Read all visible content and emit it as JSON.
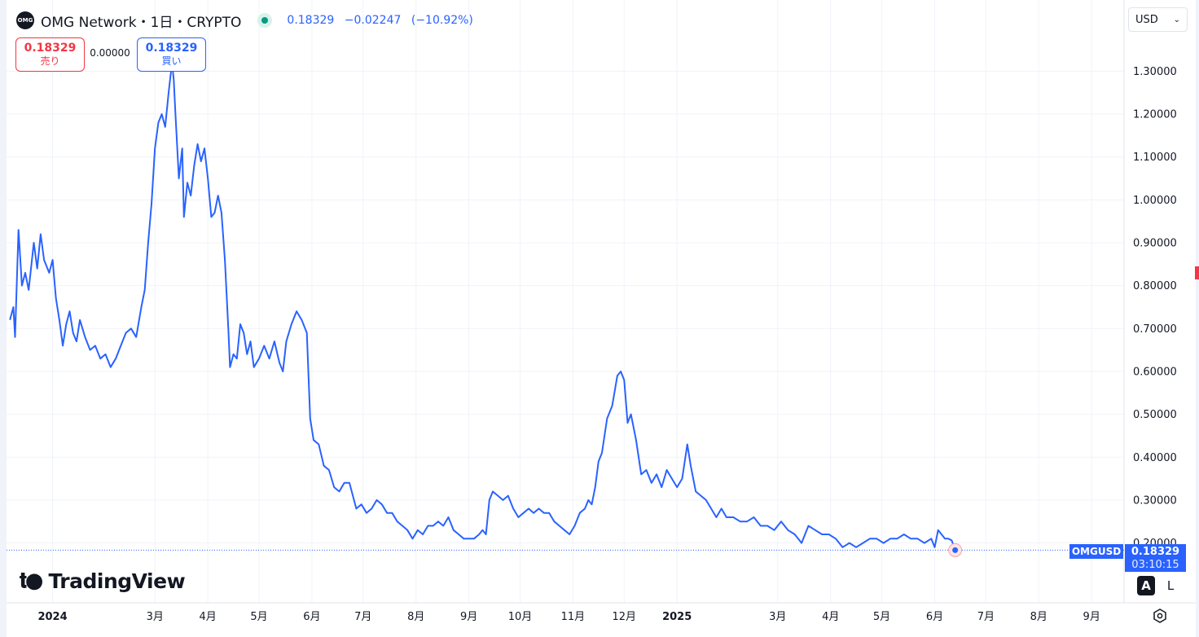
{
  "header": {
    "logo_text": "OMG",
    "title": "OMG Network・1日・CRYPTO",
    "last_price": "0.18329",
    "change": "−0.02247",
    "change_pct": "(−10.92%)"
  },
  "trade": {
    "sell_price": "0.18329",
    "sell_label": "売り",
    "spread": "0.00000",
    "buy_price": "0.18329",
    "buy_label": "買い"
  },
  "currency": {
    "selected": "USD"
  },
  "branding": {
    "name": "TradingView"
  },
  "price_tag": {
    "symbol": "OMGUSD",
    "price": "0.18329",
    "countdown": "03:10:15"
  },
  "scale_buttons": {
    "auto": "A",
    "log": "L"
  },
  "colors": {
    "line": "#2962ff",
    "grid": "#f0f3fa",
    "down": "#f23645",
    "live": "#089981"
  },
  "chart_data": {
    "type": "line",
    "series": [
      {
        "points": [
          [
            "2023-12-07",
            0.72
          ],
          [
            "2023-12-09",
            0.75
          ],
          [
            "2023-12-10",
            0.68
          ],
          [
            "2023-12-12",
            0.93
          ],
          [
            "2023-12-14",
            0.8
          ],
          [
            "2023-12-16",
            0.83
          ],
          [
            "2023-12-18",
            0.79
          ],
          [
            "2023-12-21",
            0.9
          ],
          [
            "2023-12-23",
            0.84
          ],
          [
            "2023-12-25",
            0.92
          ],
          [
            "2023-12-27",
            0.86
          ],
          [
            "2023-12-30",
            0.83
          ],
          [
            "2024-01-01",
            0.86
          ],
          [
            "2024-01-03",
            0.77
          ],
          [
            "2024-01-05",
            0.72
          ],
          [
            "2024-01-07",
            0.66
          ],
          [
            "2024-01-09",
            0.71
          ],
          [
            "2024-01-11",
            0.74
          ],
          [
            "2024-01-13",
            0.69
          ],
          [
            "2024-01-15",
            0.67
          ],
          [
            "2024-01-17",
            0.72
          ],
          [
            "2024-01-20",
            0.68
          ],
          [
            "2024-01-23",
            0.65
          ],
          [
            "2024-01-26",
            0.66
          ],
          [
            "2024-01-29",
            0.63
          ],
          [
            "2024-02-01",
            0.64
          ],
          [
            "2024-02-04",
            0.61
          ],
          [
            "2024-02-07",
            0.63
          ],
          [
            "2024-02-10",
            0.66
          ],
          [
            "2024-02-13",
            0.69
          ],
          [
            "2024-02-16",
            0.7
          ],
          [
            "2024-02-19",
            0.68
          ],
          [
            "2024-02-22",
            0.75
          ],
          [
            "2024-02-24",
            0.79
          ],
          [
            "2024-02-26",
            0.9
          ],
          [
            "2024-02-28",
            0.99
          ],
          [
            "2024-03-01",
            1.12
          ],
          [
            "2024-03-03",
            1.18
          ],
          [
            "2024-03-05",
            1.2
          ],
          [
            "2024-03-07",
            1.17
          ],
          [
            "2024-03-09",
            1.25
          ],
          [
            "2024-03-11",
            1.32
          ],
          [
            "2024-03-12",
            1.28
          ],
          [
            "2024-03-13",
            1.2
          ],
          [
            "2024-03-15",
            1.05
          ],
          [
            "2024-03-17",
            1.12
          ],
          [
            "2024-03-18",
            0.96
          ],
          [
            "2024-03-20",
            1.04
          ],
          [
            "2024-03-22",
            1.01
          ],
          [
            "2024-03-24",
            1.08
          ],
          [
            "2024-03-26",
            1.13
          ],
          [
            "2024-03-28",
            1.09
          ],
          [
            "2024-03-30",
            1.12
          ],
          [
            "2024-04-01",
            1.05
          ],
          [
            "2024-04-03",
            0.96
          ],
          [
            "2024-04-05",
            0.97
          ],
          [
            "2024-04-07",
            1.01
          ],
          [
            "2024-04-09",
            0.97
          ],
          [
            "2024-04-11",
            0.86
          ],
          [
            "2024-04-13",
            0.7
          ],
          [
            "2024-04-14",
            0.61
          ],
          [
            "2024-04-16",
            0.64
          ],
          [
            "2024-04-18",
            0.63
          ],
          [
            "2024-04-20",
            0.71
          ],
          [
            "2024-04-22",
            0.69
          ],
          [
            "2024-04-24",
            0.64
          ],
          [
            "2024-04-26",
            0.67
          ],
          [
            "2024-04-28",
            0.61
          ],
          [
            "2024-05-01",
            0.63
          ],
          [
            "2024-05-04",
            0.66
          ],
          [
            "2024-05-07",
            0.63
          ],
          [
            "2024-05-10",
            0.67
          ],
          [
            "2024-05-13",
            0.62
          ],
          [
            "2024-05-15",
            0.6
          ],
          [
            "2024-05-17",
            0.67
          ],
          [
            "2024-05-20",
            0.71
          ],
          [
            "2024-05-23",
            0.74
          ],
          [
            "2024-05-26",
            0.72
          ],
          [
            "2024-05-29",
            0.69
          ],
          [
            "2024-05-31",
            0.49
          ],
          [
            "2024-06-02",
            0.44
          ],
          [
            "2024-06-05",
            0.43
          ],
          [
            "2024-06-08",
            0.38
          ],
          [
            "2024-06-11",
            0.37
          ],
          [
            "2024-06-14",
            0.33
          ],
          [
            "2024-06-17",
            0.32
          ],
          [
            "2024-06-20",
            0.34
          ],
          [
            "2024-06-23",
            0.34
          ],
          [
            "2024-06-25",
            0.31
          ],
          [
            "2024-06-27",
            0.28
          ],
          [
            "2024-06-30",
            0.29
          ],
          [
            "2024-07-03",
            0.27
          ],
          [
            "2024-07-06",
            0.28
          ],
          [
            "2024-07-09",
            0.3
          ],
          [
            "2024-07-12",
            0.29
          ],
          [
            "2024-07-15",
            0.27
          ],
          [
            "2024-07-18",
            0.27
          ],
          [
            "2024-07-21",
            0.25
          ],
          [
            "2024-07-24",
            0.24
          ],
          [
            "2024-07-27",
            0.23
          ],
          [
            "2024-07-30",
            0.21
          ],
          [
            "2024-08-02",
            0.23
          ],
          [
            "2024-08-05",
            0.22
          ],
          [
            "2024-08-08",
            0.24
          ],
          [
            "2024-08-11",
            0.24
          ],
          [
            "2024-08-14",
            0.25
          ],
          [
            "2024-08-17",
            0.24
          ],
          [
            "2024-08-20",
            0.26
          ],
          [
            "2024-08-23",
            0.23
          ],
          [
            "2024-08-26",
            0.22
          ],
          [
            "2024-08-29",
            0.21
          ],
          [
            "2024-09-01",
            0.21
          ],
          [
            "2024-09-04",
            0.21
          ],
          [
            "2024-09-07",
            0.22
          ],
          [
            "2024-09-09",
            0.23
          ],
          [
            "2024-09-11",
            0.22
          ],
          [
            "2024-09-13",
            0.3
          ],
          [
            "2024-09-15",
            0.32
          ],
          [
            "2024-09-18",
            0.31
          ],
          [
            "2024-09-21",
            0.3
          ],
          [
            "2024-09-24",
            0.31
          ],
          [
            "2024-09-27",
            0.28
          ],
          [
            "2024-09-30",
            0.26
          ],
          [
            "2024-10-03",
            0.27
          ],
          [
            "2024-10-06",
            0.28
          ],
          [
            "2024-10-09",
            0.27
          ],
          [
            "2024-10-12",
            0.28
          ],
          [
            "2024-10-15",
            0.27
          ],
          [
            "2024-10-18",
            0.27
          ],
          [
            "2024-10-21",
            0.25
          ],
          [
            "2024-10-24",
            0.24
          ],
          [
            "2024-10-27",
            0.23
          ],
          [
            "2024-10-30",
            0.22
          ],
          [
            "2024-11-02",
            0.24
          ],
          [
            "2024-11-05",
            0.27
          ],
          [
            "2024-11-08",
            0.28
          ],
          [
            "2024-11-10",
            0.3
          ],
          [
            "2024-11-12",
            0.29
          ],
          [
            "2024-11-14",
            0.33
          ],
          [
            "2024-11-16",
            0.39
          ],
          [
            "2024-11-18",
            0.41
          ],
          [
            "2024-11-21",
            0.49
          ],
          [
            "2024-11-24",
            0.52
          ],
          [
            "2024-11-27",
            0.59
          ],
          [
            "2024-11-29",
            0.6
          ],
          [
            "2024-12-01",
            0.58
          ],
          [
            "2024-12-03",
            0.48
          ],
          [
            "2024-12-05",
            0.5
          ],
          [
            "2024-12-08",
            0.44
          ],
          [
            "2024-12-11",
            0.36
          ],
          [
            "2024-12-14",
            0.37
          ],
          [
            "2024-12-17",
            0.34
          ],
          [
            "2024-12-20",
            0.36
          ],
          [
            "2024-12-23",
            0.33
          ],
          [
            "2024-12-26",
            0.37
          ],
          [
            "2024-12-29",
            0.35
          ],
          [
            "2025-01-01",
            0.33
          ],
          [
            "2025-01-04",
            0.35
          ],
          [
            "2025-01-07",
            0.43
          ],
          [
            "2025-01-09",
            0.38
          ],
          [
            "2025-01-12",
            0.32
          ],
          [
            "2025-01-15",
            0.31
          ],
          [
            "2025-01-18",
            0.3
          ],
          [
            "2025-01-21",
            0.28
          ],
          [
            "2025-01-24",
            0.26
          ],
          [
            "2025-01-27",
            0.28
          ],
          [
            "2025-01-30",
            0.26
          ],
          [
            "2025-02-03",
            0.26
          ],
          [
            "2025-02-07",
            0.25
          ],
          [
            "2025-02-11",
            0.25
          ],
          [
            "2025-02-15",
            0.26
          ],
          [
            "2025-02-19",
            0.24
          ],
          [
            "2025-02-23",
            0.24
          ],
          [
            "2025-02-27",
            0.23
          ],
          [
            "2025-03-03",
            0.25
          ],
          [
            "2025-03-07",
            0.23
          ],
          [
            "2025-03-11",
            0.22
          ],
          [
            "2025-03-15",
            0.2
          ],
          [
            "2025-03-19",
            0.24
          ],
          [
            "2025-03-23",
            0.23
          ],
          [
            "2025-03-27",
            0.22
          ],
          [
            "2025-03-31",
            0.22
          ],
          [
            "2025-04-04",
            0.21
          ],
          [
            "2025-04-08",
            0.19
          ],
          [
            "2025-04-12",
            0.2
          ],
          [
            "2025-04-16",
            0.19
          ],
          [
            "2025-04-20",
            0.2
          ],
          [
            "2025-04-24",
            0.21
          ],
          [
            "2025-04-28",
            0.21
          ],
          [
            "2025-05-02",
            0.2
          ],
          [
            "2025-05-06",
            0.21
          ],
          [
            "2025-05-10",
            0.21
          ],
          [
            "2025-05-14",
            0.22
          ],
          [
            "2025-05-18",
            0.21
          ],
          [
            "2025-05-22",
            0.21
          ],
          [
            "2025-05-26",
            0.2
          ],
          [
            "2025-05-30",
            0.21
          ],
          [
            "2025-06-01",
            0.19
          ],
          [
            "2025-06-03",
            0.23
          ],
          [
            "2025-06-05",
            0.22
          ],
          [
            "2025-06-07",
            0.21
          ],
          [
            "2025-06-09",
            0.21
          ],
          [
            "2025-06-11",
            0.206
          ],
          [
            "2025-06-13",
            0.18329
          ]
        ]
      }
    ],
    "ylim": [
      0.14,
      1.38
    ],
    "y_ticks": [
      "1.30000",
      "1.20000",
      "1.10000",
      "1.00000",
      "0.90000",
      "0.80000",
      "0.70000",
      "0.60000",
      "0.50000",
      "0.40000",
      "0.30000",
      "0.20000"
    ],
    "x_range": [
      "2023-12-05",
      "2025-09-20"
    ],
    "x_ticks": [
      {
        "date": "2024-01-01",
        "label": "2024"
      },
      {
        "date": "2024-03-01",
        "label": "3月"
      },
      {
        "date": "2024-04-01",
        "label": "4月"
      },
      {
        "date": "2024-05-01",
        "label": "5月"
      },
      {
        "date": "2024-06-01",
        "label": "6月"
      },
      {
        "date": "2024-07-01",
        "label": "7月"
      },
      {
        "date": "2024-08-01",
        "label": "8月"
      },
      {
        "date": "2024-09-01",
        "label": "9月"
      },
      {
        "date": "2024-10-01",
        "label": "10月"
      },
      {
        "date": "2024-11-01",
        "label": "11月"
      },
      {
        "date": "2024-12-01",
        "label": "12月"
      },
      {
        "date": "2025-01-01",
        "label": "2025"
      },
      {
        "date": "2025-03-01",
        "label": "3月"
      },
      {
        "date": "2025-04-01",
        "label": "4月"
      },
      {
        "date": "2025-05-01",
        "label": "5月"
      },
      {
        "date": "2025-06-01",
        "label": "6月"
      },
      {
        "date": "2025-07-01",
        "label": "7月"
      },
      {
        "date": "2025-08-01",
        "label": "8月"
      },
      {
        "date": "2025-09-01",
        "label": "9月"
      }
    ],
    "grid": true,
    "last_value": 0.18329
  }
}
